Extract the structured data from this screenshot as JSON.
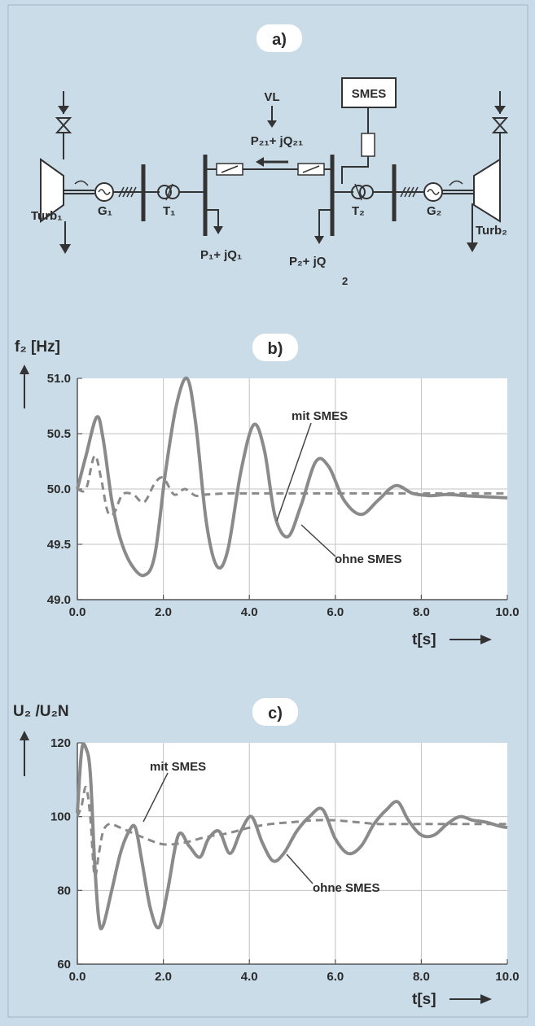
{
  "diagram": {
    "label": "a)",
    "smes": "SMES",
    "vl": "VL",
    "flow": "P₂₁+ jQ₂₁",
    "turb1": "Turb₁",
    "g1": "G₁",
    "t1": "T₁",
    "t2": "T₂",
    "g2": "G₂",
    "turb2": "Turb₂",
    "load1": "P₁+ jQ₁",
    "load2": "P₂+ jQ",
    "load2_sub": "2"
  },
  "chart_data": [
    {
      "id": "b",
      "type": "line",
      "panel_label": "b)",
      "title": "",
      "ylabel": "f₂ [Hz]",
      "xlabel": "t[s]",
      "xlim": [
        0,
        10
      ],
      "ylim": [
        49.0,
        51.0
      ],
      "grid": true,
      "xticks": [
        0,
        2,
        4,
        6,
        8,
        10
      ],
      "xtick_labels": [
        "0.0",
        "2.0",
        "4.0",
        "6.0",
        "8.0",
        "10.0"
      ],
      "yticks": [
        49.0,
        49.5,
        50.0,
        50.5,
        51.0
      ],
      "ytick_labels": [
        "49.0",
        "49.5",
        "50.0",
        "50.5",
        "51.0"
      ],
      "series": [
        {
          "name": "ohne SMES",
          "style": "solid",
          "x": [
            0,
            0.2,
            0.45,
            0.6,
            0.8,
            1.0,
            1.25,
            1.55,
            1.8,
            2.05,
            2.3,
            2.55,
            2.75,
            3.0,
            3.25,
            3.5,
            3.8,
            4.1,
            4.35,
            4.6,
            4.9,
            5.2,
            5.55,
            5.85,
            6.2,
            6.6,
            7.0,
            7.4,
            7.8,
            8.2,
            8.6,
            9.0,
            9.5,
            10.0
          ],
          "values": [
            50.0,
            50.3,
            50.65,
            50.45,
            49.9,
            49.55,
            49.32,
            49.22,
            49.4,
            50.15,
            50.75,
            51.0,
            50.6,
            49.7,
            49.3,
            49.45,
            50.15,
            50.58,
            50.35,
            49.75,
            49.57,
            49.85,
            50.25,
            50.2,
            49.9,
            49.77,
            49.9,
            50.03,
            49.96,
            49.94,
            49.95,
            49.94,
            49.93,
            49.92
          ]
        },
        {
          "name": "mit SMES",
          "style": "dashed",
          "x": [
            0,
            0.2,
            0.4,
            0.55,
            0.7,
            0.85,
            1.05,
            1.3,
            1.55,
            1.8,
            2.0,
            2.25,
            2.5,
            2.75,
            3.0,
            3.5,
            4.0,
            5.0,
            6.0,
            7.0,
            8.0,
            9.0,
            10.0
          ],
          "values": [
            50.0,
            50.0,
            50.3,
            50.1,
            49.8,
            49.78,
            49.95,
            49.95,
            49.88,
            50.05,
            50.1,
            49.95,
            50.0,
            49.94,
            49.95,
            49.96,
            49.96,
            49.96,
            49.96,
            49.96,
            49.96,
            49.96,
            49.96
          ]
        }
      ],
      "annotations": [
        "mit SMES",
        "ohne SMES"
      ]
    },
    {
      "id": "c",
      "type": "line",
      "panel_label": "c)",
      "title": "",
      "ylabel": "U₂ /U₂N",
      "xlabel": "t[s]",
      "xlim": [
        0,
        10
      ],
      "ylim": [
        60,
        120
      ],
      "grid": true,
      "xticks": [
        0,
        2,
        4,
        6,
        8,
        10
      ],
      "xtick_labels": [
        "0.0",
        "2.0",
        "4.0",
        "6.0",
        "8.0",
        "10.0"
      ],
      "yticks": [
        60,
        80,
        100,
        120
      ],
      "ytick_labels": [
        "60",
        "80",
        "100",
        "120"
      ],
      "series": [
        {
          "name": "ohne SMES",
          "style": "solid",
          "x": [
            0,
            0.1,
            0.2,
            0.3,
            0.4,
            0.5,
            0.6,
            0.8,
            1.0,
            1.2,
            1.35,
            1.5,
            1.7,
            1.9,
            2.1,
            2.35,
            2.6,
            2.85,
            3.05,
            3.3,
            3.55,
            3.8,
            4.05,
            4.3,
            4.55,
            4.8,
            5.1,
            5.4,
            5.7,
            6.0,
            6.3,
            6.6,
            6.9,
            7.2,
            7.45,
            7.7,
            8.0,
            8.3,
            8.6,
            8.9,
            9.2,
            9.5,
            9.8,
            10.0
          ],
          "values": [
            101,
            118,
            118.5,
            112,
            88,
            72,
            70.5,
            80,
            90,
            96,
            97,
            88,
            75,
            70,
            80,
            95,
            92,
            89,
            94,
            96,
            90,
            96,
            100,
            93,
            88,
            90,
            96,
            100,
            102,
            94,
            90,
            92,
            98,
            102,
            104,
            99,
            95,
            95,
            98,
            100,
            99,
            98.5,
            97.5,
            97
          ]
        },
        {
          "name": "mit SMES",
          "style": "dashed",
          "x": [
            0,
            0.1,
            0.2,
            0.3,
            0.4,
            0.5,
            0.6,
            0.75,
            1.0,
            1.5,
            2.0,
            2.5,
            3.0,
            3.5,
            4.0,
            4.5,
            5.0,
            5.5,
            6.0,
            6.5,
            7.0,
            7.5,
            8.0,
            9.0,
            10.0
          ],
          "values": [
            100,
            103,
            108,
            100,
            84,
            90,
            96,
            98,
            97,
            94.5,
            92.5,
            93,
            94.5,
            95.5,
            97,
            98,
            98.5,
            99,
            99,
            98.5,
            98,
            98,
            98,
            98,
            98
          ]
        }
      ],
      "annotations": [
        "mit SMES",
        "ohne SMES"
      ]
    }
  ]
}
